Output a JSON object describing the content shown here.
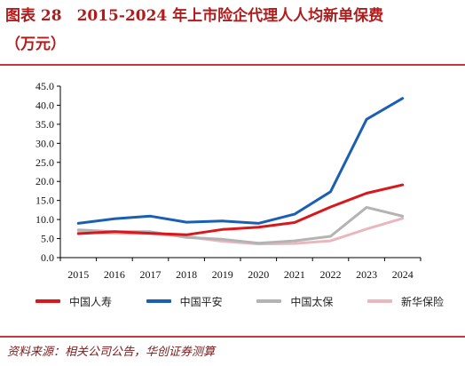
{
  "title": {
    "line1": "图表 28　2015-2024 年上市险企代理人人均新单保费",
    "line2": "（万元）"
  },
  "source": "资料来源：相关公司公告，华创证券测算",
  "colors": {
    "accent_rule": "#c6393a",
    "title_text": "#b21b1b"
  },
  "chart_data": {
    "type": "line",
    "x": [
      "2015",
      "2016",
      "2017",
      "2018",
      "2019",
      "2020",
      "2021",
      "2022",
      "2023",
      "2024"
    ],
    "ylim": [
      0,
      45
    ],
    "yticks": [
      "0.0",
      "5.0",
      "10.0",
      "15.0",
      "20.0",
      "25.0",
      "30.0",
      "35.0",
      "40.0",
      "45.0"
    ],
    "grid": false,
    "legend_position": "bottom",
    "series": [
      {
        "name": "中国人寿",
        "color": "#d7191c",
        "values": [
          6.3,
          6.8,
          6.4,
          6.0,
          7.4,
          8.0,
          9.2,
          13.3,
          16.9,
          19.1
        ]
      },
      {
        "name": "中国平安",
        "color": "#1a5fb4",
        "values": [
          9.0,
          10.2,
          10.9,
          9.3,
          9.6,
          9.0,
          11.4,
          17.3,
          36.3,
          41.8
        ]
      },
      {
        "name": "中国太保",
        "color": "#b3b3b3",
        "values": [
          7.3,
          6.8,
          6.8,
          5.3,
          4.8,
          3.8,
          4.4,
          5.6,
          13.2,
          10.9
        ]
      },
      {
        "name": "新华保险",
        "color": "#e9b7bd",
        "values": [
          6.8,
          6.4,
          6.3,
          5.5,
          4.3,
          3.6,
          3.7,
          4.4,
          7.5,
          10.3
        ]
      }
    ]
  }
}
